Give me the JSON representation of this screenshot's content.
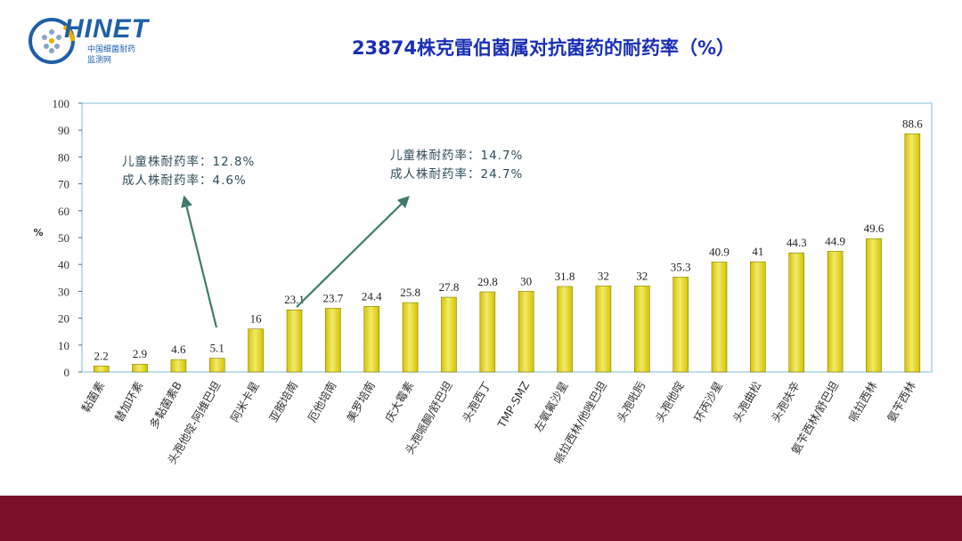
{
  "logo": {
    "brand": "HINET",
    "sub1": "中国细菌耐药",
    "sub2": "监测网"
  },
  "title": "23874株克雷伯菌属对抗菌药的耐药率（%）",
  "annotations": [
    {
      "line1": "儿童株耐药率：12.8%",
      "line2": "成人株耐药率：4.6%"
    },
    {
      "line1": "儿童株耐药率：14.7%",
      "line2": "成人株耐药率：24.7%"
    }
  ],
  "colors": {
    "bar": "#d4c400",
    "bar_light": "#f2ea6a",
    "title": "#1a2fb5",
    "footer": "#7b0f27",
    "arrow": "#3f7a6e"
  },
  "chart_data": {
    "type": "bar",
    "title": "23874株克雷伯菌属对抗菌药的耐药率（%）",
    "ylabel": "%",
    "xlabel": "",
    "ylim": [
      0,
      100
    ],
    "yticks": [
      0,
      10,
      20,
      30,
      40,
      50,
      60,
      70,
      80,
      90,
      100
    ],
    "grid": false,
    "categories": [
      "黏菌素",
      "替加环素",
      "多黏菌素B",
      "头孢他啶-阿维巴坦",
      "阿米卡星",
      "亚胺培南",
      "厄他培南",
      "美罗培南",
      "庆大霉素",
      "头孢哌酮/舒巴坦",
      "头孢西丁",
      "TMP-SMZ",
      "左氧氟沙星",
      "哌拉西林/他唑巴坦",
      "头孢吡肟",
      "头孢他啶",
      "环丙沙星",
      "头孢曲松",
      "头孢呋辛",
      "氨苄西林/舒巴坦",
      "哌拉西林",
      "氨苄西林"
    ],
    "values": [
      2.2,
      2.9,
      4.6,
      5.1,
      16,
      23.1,
      23.7,
      24.4,
      25.8,
      27.8,
      29.8,
      30,
      31.8,
      32,
      32,
      35.3,
      40.9,
      41,
      44.3,
      44.9,
      49.6,
      88.6
    ]
  }
}
